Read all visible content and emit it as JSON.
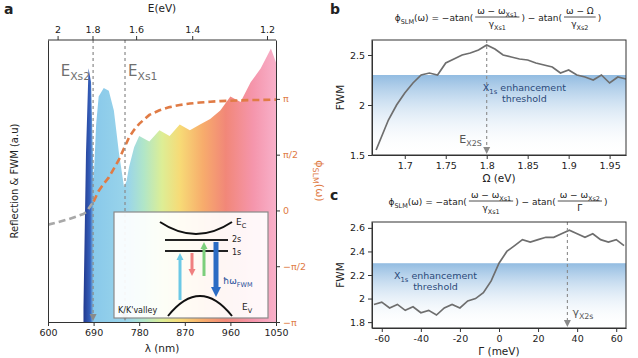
{
  "chart_data": [
    {
      "type": "line",
      "panel_label": "a",
      "x": [
        600,
        620,
        640,
        660,
        670,
        675,
        680,
        685,
        690,
        695,
        700,
        710,
        720,
        730,
        740,
        750,
        755,
        760,
        770,
        780,
        800,
        820,
        840,
        860,
        880,
        900,
        920,
        940,
        960,
        980,
        1000,
        1020,
        1040,
        1050
      ],
      "xlim": [
        600,
        1050
      ],
      "xticks": [
        600,
        690,
        780,
        870,
        960,
        1050
      ],
      "xlabel": "λ (nm)",
      "x2ticks": [
        2,
        1.8,
        1.6,
        1.4,
        1.2
      ],
      "x2label": "E(eV)",
      "ylim": [
        0,
        1
      ],
      "yticks": [],
      "ylabel": "Reflection & FWM (a.u)",
      "y2lim": [
        -3.1416,
        4.8
      ],
      "y2ticks": [
        {
          "value": -3.1416,
          "label": "−π"
        },
        {
          "value": -1.5708,
          "label": "−π/2"
        },
        0,
        {
          "value": 1.5708,
          "label": "π/2"
        },
        {
          "value": 3.1416,
          "label": "π"
        }
      ],
      "y2label": [
        "ϕ",
        "SLM",
        "(ω)"
      ],
      "series": [
        {
          "type": "area",
          "values": [
            null,
            null,
            null,
            null,
            0.05,
            0.6,
            0.9,
            0.85,
            0.5,
            0.7,
            0.8,
            0.83,
            0.82,
            0.75,
            0.6,
            0.48,
            0.5,
            0.55,
            0.62,
            0.66,
            0.64,
            0.68,
            0.66,
            0.7,
            0.68,
            0.7,
            0.72,
            0.75,
            0.8,
            0.78,
            0.85,
            0.9,
            0.97,
            0.92
          ]
        },
        {
          "type": "line",
          "axis": "y2",
          "color": "#a8a8a8",
          "line_style": "dashed",
          "values": [
            -0.4,
            -0.33,
            -0.25,
            -0.15,
            -0.1,
            -0.05,
            0.05,
            0.15,
            0.25,
            null,
            null,
            null,
            null,
            null,
            null,
            null,
            null,
            null,
            null,
            null,
            null,
            null,
            null,
            null,
            null,
            null,
            null,
            null,
            null,
            null,
            null,
            null,
            null,
            null
          ]
        },
        {
          "type": "line",
          "axis": "y2",
          "color": "#e07b45",
          "line_style": "dashed",
          "values": [
            null,
            null,
            null,
            null,
            null,
            null,
            null,
            null,
            0.25,
            0.4,
            0.55,
            0.75,
            0.93,
            1.18,
            1.43,
            1.75,
            1.9,
            2.06,
            2.27,
            2.44,
            2.69,
            2.82,
            2.91,
            2.97,
            3.01,
            3.04,
            3.06,
            3.08,
            3.09,
            3.1,
            3.11,
            3.11,
            3.12,
            3.12
          ]
        }
      ],
      "annotations": [
        {
          "x": 689,
          "label": [
            "E",
            "Xs2"
          ]
        },
        {
          "x": 752,
          "label": [
            "E",
            "Xs1"
          ]
        }
      ],
      "inset": {
        "conduction": [
          "E",
          "C"
        ],
        "state2": "2s",
        "state1": "1s",
        "valence": [
          "E",
          "V"
        ],
        "valley": "K/K'valley",
        "photon": [
          "ħω",
          "FWM"
        ]
      }
    },
    {
      "type": "line",
      "panel_label": "b",
      "formula": [
        {
          "text": [
            "ϕ",
            "SLM",
            "(ω) = −atan("
          ]
        },
        {
          "num": [
            "ω − ω",
            "Xs1"
          ],
          "den": [
            "γ",
            "Xs1"
          ]
        },
        {
          "text": [
            ") − atan("
          ]
        },
        {
          "num": [
            "ω − Ω"
          ],
          "den": [
            "γ",
            "Xs2"
          ]
        },
        {
          "text": [
            ")"
          ]
        }
      ],
      "x": [
        1.665,
        1.68,
        1.69,
        1.7,
        1.71,
        1.72,
        1.73,
        1.74,
        1.75,
        1.76,
        1.77,
        1.78,
        1.79,
        1.8,
        1.81,
        1.82,
        1.83,
        1.84,
        1.85,
        1.86,
        1.87,
        1.88,
        1.89,
        1.9,
        1.91,
        1.92,
        1.93,
        1.94,
        1.95,
        1.96,
        1.97
      ],
      "values": [
        1.55,
        1.85,
        2.0,
        2.12,
        2.22,
        2.3,
        2.32,
        2.3,
        2.42,
        2.46,
        2.5,
        2.52,
        2.55,
        2.6,
        2.56,
        2.5,
        2.48,
        2.46,
        2.45,
        2.42,
        2.4,
        2.38,
        2.32,
        2.35,
        2.3,
        2.28,
        2.25,
        2.3,
        2.22,
        2.28,
        2.26
      ],
      "color": "#6e6e6e",
      "xlim": [
        1.66,
        1.97
      ],
      "xticks": [
        1.7,
        1.75,
        1.8,
        1.85,
        1.9,
        1.95
      ],
      "xlabel": "Ω (eV)",
      "ylim": [
        1.5,
        2.65
      ],
      "yticks": [
        1.5,
        2,
        2.5
      ],
      "ylabel": "FWM",
      "threshold": {
        "value": 2.3,
        "label": [
          [
            "X",
            "1s",
            " enhancement"
          ],
          [
            "threshold"
          ]
        ]
      },
      "annotations": [
        {
          "x": 1.8,
          "label": [
            "E",
            "X2S"
          ]
        }
      ]
    },
    {
      "type": "line",
      "panel_label": "c",
      "formula": [
        {
          "text": [
            "ϕ",
            "SLM",
            "(ω) = −atan("
          ]
        },
        {
          "num": [
            "ω − ω",
            "Xs1"
          ],
          "den": [
            "γ",
            "Xs1"
          ]
        },
        {
          "text": [
            ") − atan("
          ]
        },
        {
          "num": [
            "ω − ω",
            "Xs2"
          ],
          "den": [
            "Γ"
          ]
        },
        {
          "text": [
            ")"
          ]
        }
      ],
      "x": [
        -64,
        -60,
        -56,
        -52,
        -48,
        -44,
        -40,
        -36,
        -32,
        -28,
        -24,
        -20,
        -16,
        -12,
        -8,
        -4,
        0,
        4,
        8,
        12,
        16,
        20,
        24,
        28,
        32,
        36,
        40,
        44,
        48,
        52,
        56,
        60,
        64
      ],
      "values": [
        1.95,
        1.97,
        1.92,
        1.95,
        1.9,
        1.93,
        1.88,
        1.9,
        1.86,
        1.92,
        1.95,
        1.92,
        1.98,
        2.0,
        2.05,
        2.15,
        2.3,
        2.4,
        2.45,
        2.5,
        2.48,
        2.5,
        2.52,
        2.52,
        2.55,
        2.58,
        2.55,
        2.52,
        2.55,
        2.5,
        2.48,
        2.5,
        2.45
      ],
      "color": "#6e6e6e",
      "xlim": [
        -65,
        65
      ],
      "xticks": [
        -60,
        -40,
        -20,
        0,
        20,
        40,
        60
      ],
      "xlabel": "Γ (meV)",
      "ylim": [
        1.75,
        2.65
      ],
      "yticks": [
        1.8,
        2,
        2.2,
        2.4,
        2.6
      ],
      "ylabel": "FWM",
      "threshold": {
        "value": 2.3,
        "label": [
          [
            "X",
            "1s",
            " enhancement"
          ],
          [
            "threshold"
          ]
        ]
      },
      "annotations": [
        {
          "x": 35,
          "label": [
            "γ",
            "X2s"
          ]
        }
      ]
    }
  ]
}
